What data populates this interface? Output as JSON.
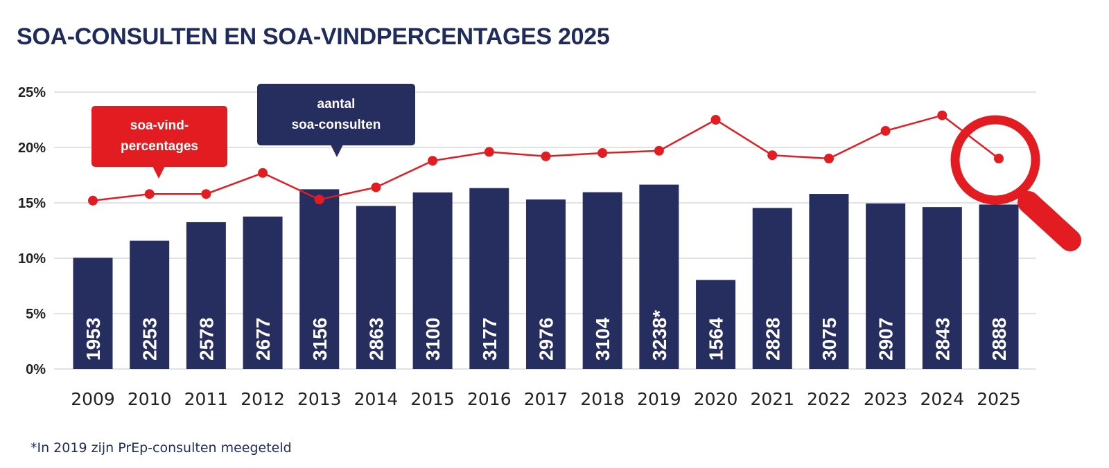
{
  "title": "SOA-CONSULTEN EN SOA-VINDPERCENTAGES 2025",
  "footnote": "*In 2019 zijn PrEp-consulten meegeteld",
  "callouts": {
    "red_line1": "soa-vind-",
    "red_line2": "percentages",
    "blue_line1": "aantal",
    "blue_line2": "soa-consulten"
  },
  "icons": {
    "magnifier": "magnifying-glass-icon"
  },
  "colors": {
    "bars": "#262e60",
    "line": "#e21c21",
    "title": "#1e2b5c",
    "grid": "#d9d9d9"
  },
  "chart_data": {
    "type": "bar",
    "title": "SOA-CONSULTEN EN SOA-VINDPERCENTAGES 2025",
    "xlabel": "",
    "ylabel": "",
    "categories": [
      "2009",
      "2010",
      "2011",
      "2012",
      "2013",
      "2014",
      "2015",
      "2016",
      "2017",
      "2018",
      "2019",
      "2020",
      "2021",
      "2022",
      "2023",
      "2024",
      "2025"
    ],
    "yticks": [
      "0%",
      "5%",
      "10%",
      "15%",
      "20%",
      "25%"
    ],
    "ylim": [
      0,
      25
    ],
    "grid": true,
    "series": [
      {
        "name": "aantal soa-consulten",
        "type": "bar",
        "values": [
          1953,
          2253,
          2578,
          2677,
          3156,
          2863,
          3100,
          3177,
          2976,
          3104,
          3238,
          1564,
          2828,
          3075,
          2907,
          2843,
          2888
        ],
        "labels": [
          "1953",
          "2253",
          "2578",
          "2677",
          "3156",
          "2863",
          "3100",
          "3177",
          "2976",
          "3104",
          "3238*",
          "1564",
          "2828",
          "3075",
          "2907",
          "2843",
          "2888"
        ]
      },
      {
        "name": "soa-vindpercentages",
        "type": "line",
        "values": [
          15.2,
          15.8,
          15.8,
          17.7,
          15.3,
          16.4,
          18.8,
          19.6,
          19.2,
          19.5,
          19.7,
          22.5,
          19.3,
          19.0,
          21.5,
          22.9,
          19.0
        ]
      }
    ]
  }
}
